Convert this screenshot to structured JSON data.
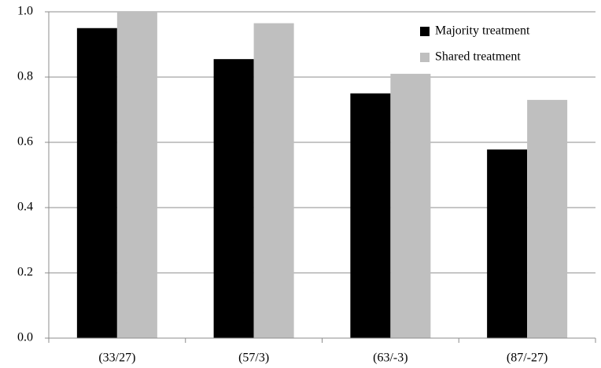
{
  "chart_data": {
    "type": "bar",
    "categories": [
      "(33/27)",
      "(57/3)",
      "(63/-3)",
      "(87/-27)"
    ],
    "series": [
      {
        "name": "Majority treatment",
        "color": "#000000",
        "values": [
          0.95,
          0.855,
          0.75,
          0.578
        ]
      },
      {
        "name": "Shared treatment",
        "color": "#bfbfbf",
        "values": [
          1.0,
          0.965,
          0.81,
          0.73
        ]
      }
    ],
    "ylim": [
      0,
      1
    ],
    "yticks": [
      {
        "value": 0,
        "label": "0.0"
      },
      0.2,
      0.4,
      0.6,
      0.8,
      {
        "value": 1,
        "label": "1.0"
      }
    ],
    "grid": true,
    "legend": "top-right"
  }
}
